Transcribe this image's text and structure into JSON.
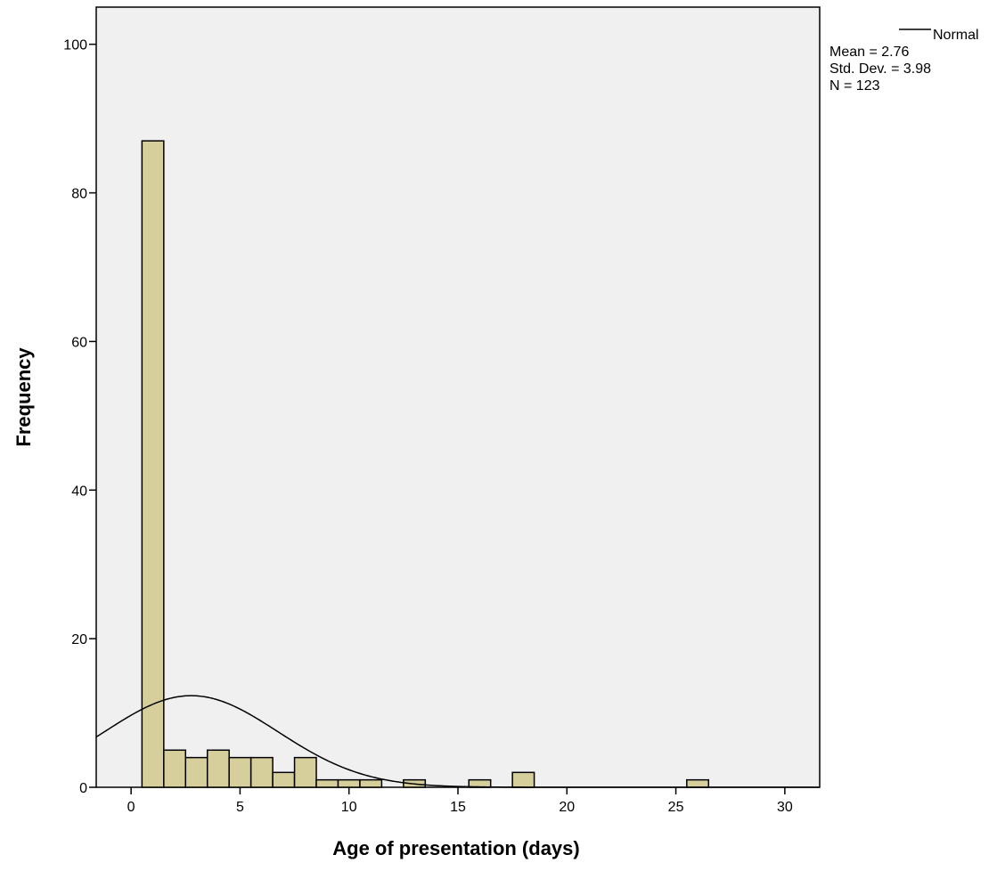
{
  "chart_data": {
    "type": "bar",
    "subtype": "histogram",
    "xlabel": "Age of presentation (days)",
    "ylabel": "Frequency",
    "xlim": [
      -1.6,
      31.6
    ],
    "ylim": [
      0,
      105
    ],
    "x_ticks": [
      0,
      5,
      10,
      15,
      20,
      25,
      30
    ],
    "y_ticks": [
      0,
      20,
      40,
      60,
      80,
      100
    ],
    "bin_width": 1,
    "bins": [
      {
        "x0": 0.5,
        "x1": 1.5,
        "count": 87
      },
      {
        "x0": 1.5,
        "x1": 2.5,
        "count": 5
      },
      {
        "x0": 2.5,
        "x1": 3.5,
        "count": 4
      },
      {
        "x0": 3.5,
        "x1": 4.5,
        "count": 5
      },
      {
        "x0": 4.5,
        "x1": 5.5,
        "count": 4
      },
      {
        "x0": 5.5,
        "x1": 6.5,
        "count": 4
      },
      {
        "x0": 6.5,
        "x1": 7.5,
        "count": 2
      },
      {
        "x0": 7.5,
        "x1": 8.5,
        "count": 4
      },
      {
        "x0": 8.5,
        "x1": 9.5,
        "count": 1
      },
      {
        "x0": 9.5,
        "x1": 10.5,
        "count": 1
      },
      {
        "x0": 10.5,
        "x1": 11.5,
        "count": 1
      },
      {
        "x0": 12.5,
        "x1": 13.5,
        "count": 1
      },
      {
        "x0": 15.5,
        "x1": 16.5,
        "count": 1
      },
      {
        "x0": 17.5,
        "x1": 18.5,
        "count": 2
      },
      {
        "x0": 25.5,
        "x1": 26.5,
        "count": 1
      }
    ],
    "normal_curve": {
      "mean": 2.76,
      "std_dev": 3.98,
      "n": 123
    },
    "legend": {
      "line_label": "Normal",
      "stats": [
        "Mean = 2.76",
        "Std. Dev. = 3.98",
        "N = 123"
      ],
      "placement": "top-right, outside plot"
    },
    "grid": false,
    "colors": {
      "bar_fill": "#d6cf9c",
      "bar_stroke": "#000000",
      "plot_background": "#f0f0f0",
      "curve": "#000000"
    }
  }
}
